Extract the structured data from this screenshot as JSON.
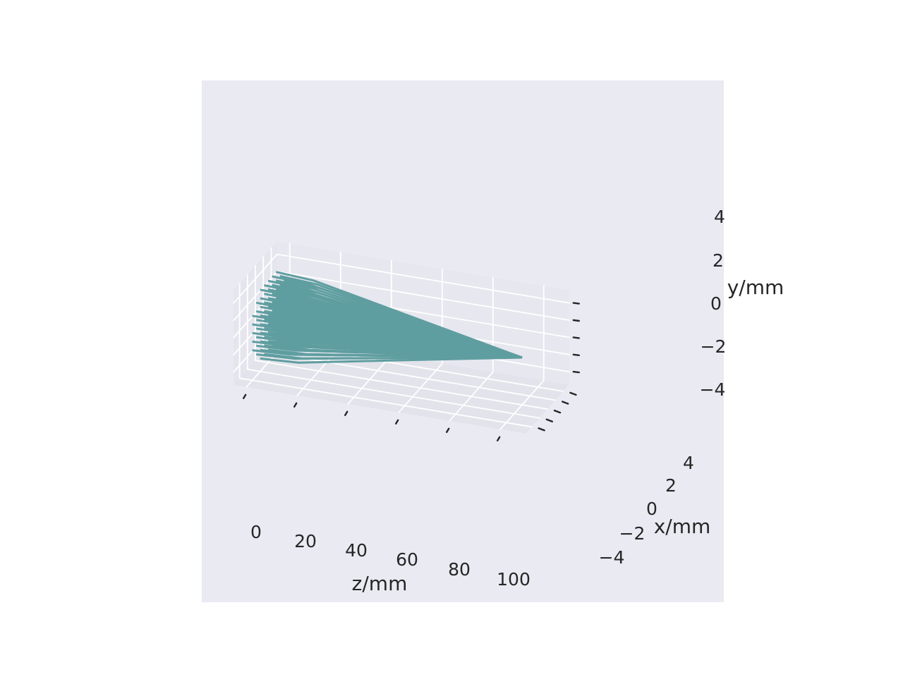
{
  "colors": {
    "background": "#ffffff",
    "axes_face": "#eaeaf2",
    "pane_left": "#e5e5ee",
    "pane_back": "#e7e7ef",
    "pane_floor": "#e3e3eb",
    "grid": "#ffffff",
    "tick": "#262626",
    "ray": "#5f9ea0"
  },
  "chart_data": {
    "type": "line",
    "projection": "3d",
    "description_of_series": "fan of rays from a grid of starting points in the z=0 plane converging to a single focal point",
    "axes": {
      "z": {
        "label": "z/mm",
        "ticks": [
          "0",
          "20",
          "40",
          "60",
          "80",
          "100"
        ],
        "range": [
          -5,
          110
        ]
      },
      "x": {
        "label": "x/mm",
        "ticks": [
          "−4",
          "−2",
          "0",
          "2",
          "4"
        ],
        "range": [
          -5.5,
          5.5
        ]
      },
      "y": {
        "label": "y/mm",
        "ticks": [
          "−4",
          "−2",
          "0",
          "2",
          "4"
        ],
        "range": [
          -5.5,
          5.5
        ]
      }
    },
    "grid": true,
    "focal_point": {
      "z": 100,
      "x": 0,
      "y": 0
    },
    "rays": {
      "start_z": 0,
      "kink_z": 15,
      "start_x_values": [
        -4,
        -3,
        -2,
        -1,
        0,
        1,
        2,
        3,
        4
      ],
      "start_y_values": [
        -4,
        -3,
        -2,
        -1,
        0,
        1,
        2,
        3,
        4
      ],
      "aperture_radius": 4.6,
      "count": 57
    }
  }
}
